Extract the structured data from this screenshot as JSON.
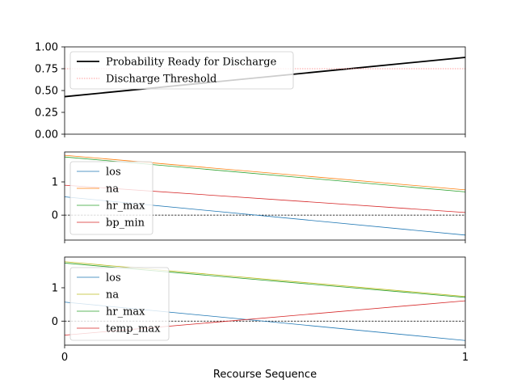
{
  "chart_data": [
    {
      "type": "line",
      "x": [
        0,
        1
      ],
      "ylim": [
        0,
        1
      ],
      "yticks": [
        "0.00",
        "0.25",
        "0.50",
        "0.75",
        "1.00"
      ],
      "xticks": [],
      "legend_position": "upper-left",
      "series": [
        {
          "name": "Probability Ready for Discharge",
          "values": [
            0.43,
            0.88
          ],
          "color": "#000000",
          "style": "solid-thick"
        },
        {
          "name": "Discharge Threshold",
          "values": [
            0.75,
            0.75
          ],
          "color": "#ff7f7f",
          "style": "dotted"
        }
      ]
    },
    {
      "type": "line",
      "x": [
        0,
        1
      ],
      "ylim": [
        -0.75,
        1.9
      ],
      "yticks": [
        "0",
        "1"
      ],
      "xticks": [],
      "zero_line": true,
      "legend_position": "upper-left",
      "series": [
        {
          "name": "los",
          "values": [
            0.55,
            -0.6
          ],
          "color": "#1f77b4"
        },
        {
          "name": "na",
          "values": [
            1.8,
            0.76
          ],
          "color": "#ff7f0e"
        },
        {
          "name": "hr_max",
          "values": [
            1.75,
            0.7
          ],
          "color": "#2ca02c"
        },
        {
          "name": "bp_min",
          "values": [
            0.9,
            0.08
          ],
          "color": "#d62728"
        }
      ]
    },
    {
      "type": "line",
      "x": [
        0,
        1
      ],
      "ylim": [
        -0.72,
        1.92
      ],
      "yticks": [
        "0",
        "1"
      ],
      "xticks": [
        "0",
        "1"
      ],
      "xlabel": "Recourse Sequence",
      "zero_line": true,
      "legend_position": "upper-left",
      "series": [
        {
          "name": "los",
          "values": [
            0.57,
            -0.58
          ],
          "color": "#1f77b4"
        },
        {
          "name": "na",
          "values": [
            1.78,
            0.74
          ],
          "color": "#bcbd22"
        },
        {
          "name": "hr_max",
          "values": [
            1.74,
            0.71
          ],
          "color": "#2ca02c"
        },
        {
          "name": "temp_max",
          "values": [
            -0.42,
            0.61
          ],
          "color": "#d62728"
        }
      ]
    }
  ]
}
